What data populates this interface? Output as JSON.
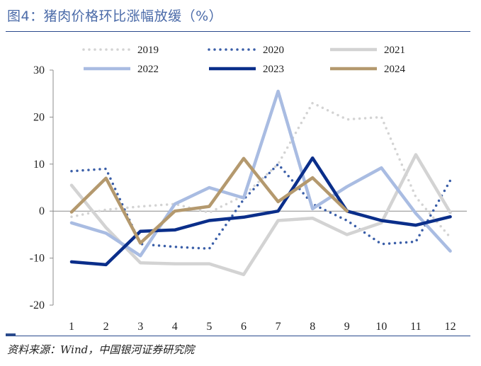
{
  "title": "图4：猪肉价格环比涨幅放缓（%）",
  "source": "资料来源：Wind，中国银河证券研究院",
  "chart_data": {
    "type": "line",
    "x": [
      "1",
      "2",
      "3",
      "4",
      "5",
      "6",
      "7",
      "8",
      "9",
      "10",
      "11",
      "12"
    ],
    "ylim": [
      -20,
      30
    ],
    "yticks": [
      "30",
      "20",
      "10",
      "0",
      "-10",
      "-20"
    ],
    "grid": false,
    "legend_position": "top",
    "series": [
      {
        "name": "2019",
        "color": "#d3d3d3",
        "style": "dotted",
        "values": [
          -1.2,
          0.3,
          1.0,
          1.5,
          -0.3,
          3.3,
          10.0,
          23.0,
          19.5,
          20.0,
          3.0,
          -5.6
        ]
      },
      {
        "name": "2020",
        "color": "#3a5ea8",
        "style": "dotted",
        "values": [
          8.5,
          9.0,
          -7.0,
          -7.6,
          -8.0,
          2.5,
          10.0,
          1.5,
          -2.0,
          -7.0,
          -6.5,
          6.5
        ]
      },
      {
        "name": "2021",
        "color": "#d3d3d3",
        "style": "solid",
        "values": [
          5.5,
          -3.5,
          -11.0,
          -11.2,
          -11.2,
          -13.5,
          -2.0,
          -1.5,
          -5.0,
          -2.5,
          12.0,
          -0.3
        ]
      },
      {
        "name": "2022",
        "color": "#a9bce2",
        "style": "solid",
        "values": [
          -2.5,
          -4.7,
          -9.5,
          1.5,
          5.0,
          2.8,
          25.5,
          0.5,
          5.2,
          9.2,
          -0.5,
          -8.5
        ]
      },
      {
        "name": "2023",
        "color": "#0a2e8a",
        "style": "solid",
        "values": [
          -10.8,
          -11.4,
          -4.3,
          -4.0,
          -2.0,
          -1.3,
          0.0,
          11.3,
          0.0,
          -2.0,
          -3.0,
          -1.2
        ]
      },
      {
        "name": "2024",
        "color": "#b4996e",
        "style": "solid",
        "values": [
          -0.2,
          7.0,
          -6.8,
          0.0,
          1.0,
          11.2,
          2.0,
          7.1,
          0.0,
          null,
          null,
          null
        ]
      }
    ]
  }
}
